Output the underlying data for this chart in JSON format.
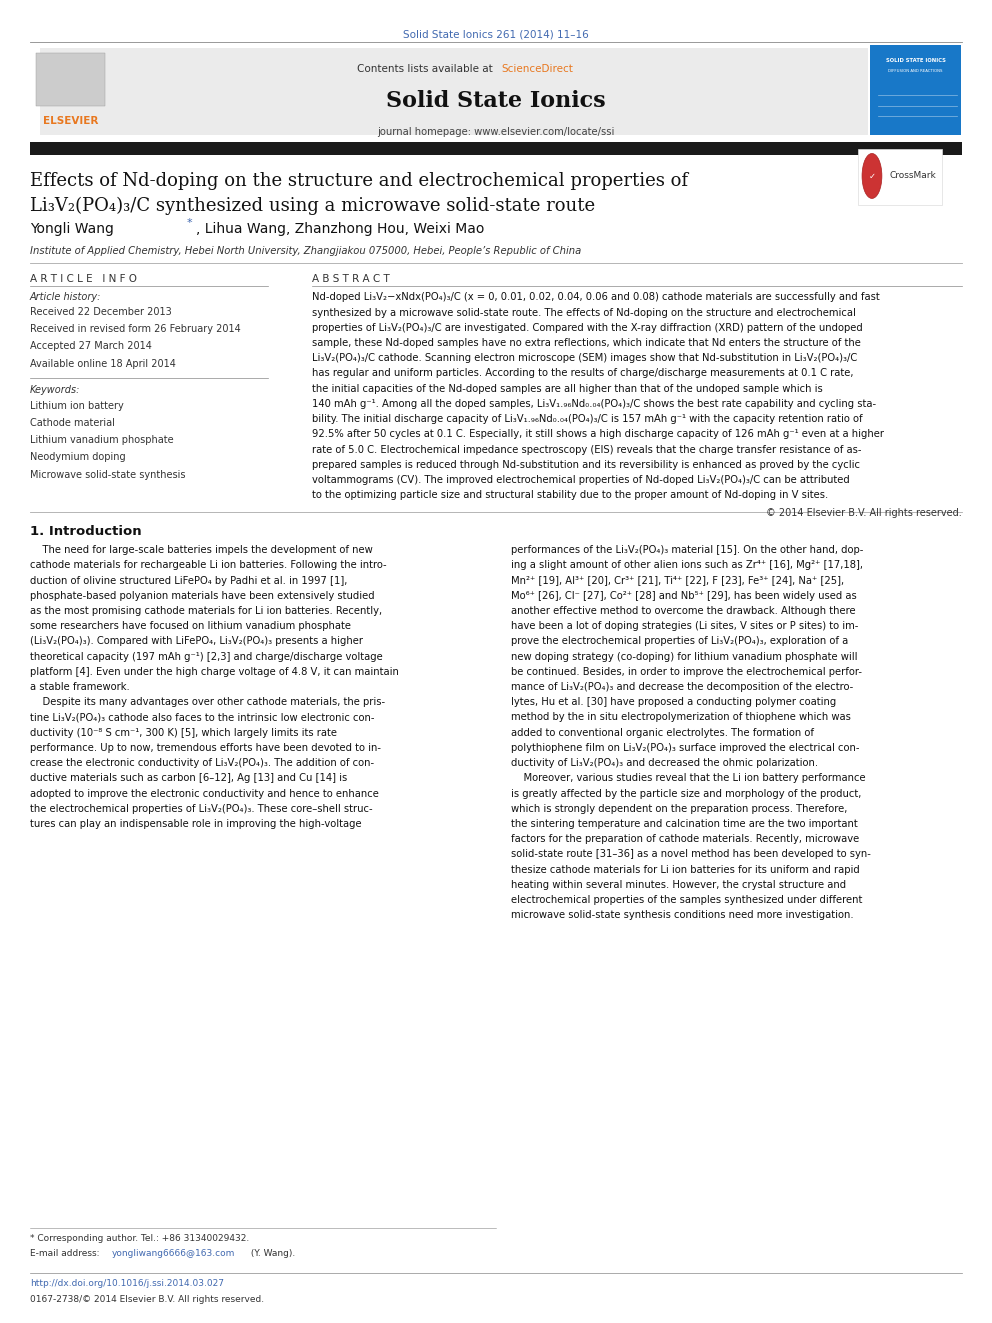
{
  "page_bg": "#ffffff",
  "journal_ref": "Solid State Ionics 261 (2014) 11–16",
  "journal_ref_color": "#4169b0",
  "thick_bar_color": "#1a1a1a",
  "title_line1": "Effects of Nd-doping on the structure and electrochemical properties of",
  "title_line2": "Li₃V₂(PO₄)₃/C synthesized using a microwave solid-state route",
  "authors_part1": "Yongli Wang ",
  "authors_asterisk": "*",
  "authors_part2": ", Lihua Wang, Zhanzhong Hou, Weixi Mao",
  "affiliation": "Institute of Applied Chemistry, Hebei North University, Zhangjiakou 075000, Hebei, People’s Republic of China",
  "article_info_header": "A R T I C L E   I N F O",
  "abstract_header": "A B S T R A C T",
  "article_history_label": "Article history:",
  "received": "Received 22 December 2013",
  "revised": "Received in revised form 26 February 2014",
  "accepted": "Accepted 27 March 2014",
  "available": "Available online 18 April 2014",
  "keywords_label": "Keywords:",
  "keywords": [
    "Lithium ion battery",
    "Cathode material",
    "Lithium vanadium phosphate",
    "Neodymium doping",
    "Microwave solid-state synthesis"
  ],
  "abstract_lines": [
    "Nd-doped Li₃V₂−xNdx(PO₄)₃/C (x = 0, 0.01, 0.02, 0.04, 0.06 and 0.08) cathode materials are successfully and fast",
    "synthesized by a microwave solid-state route. The effects of Nd-doping on the structure and electrochemical",
    "properties of Li₃V₂(PO₄)₃/C are investigated. Compared with the X-ray diffraction (XRD) pattern of the undoped",
    "sample, these Nd-doped samples have no extra reflections, which indicate that Nd enters the structure of the",
    "Li₃V₂(PO₄)₃/C cathode. Scanning electron microscope (SEM) images show that Nd-substitution in Li₃V₂(PO₄)₃/C",
    "has regular and uniform particles. According to the results of charge/discharge measurements at 0.1 C rate,",
    "the initial capacities of the Nd-doped samples are all higher than that of the undoped sample which is",
    "140 mAh g⁻¹. Among all the doped samples, Li₃V₁.₉₆Nd₀.₀₄(PO₄)₃/C shows the best rate capability and cycling sta-",
    "bility. The initial discharge capacity of Li₃V₁.₉₆Nd₀.₀₄(PO₄)₃/C is 157 mAh g⁻¹ with the capacity retention ratio of",
    "92.5% after 50 cycles at 0.1 C. Especially, it still shows a high discharge capacity of 126 mAh g⁻¹ even at a higher",
    "rate of 5.0 C. Electrochemical impedance spectroscopy (EIS) reveals that the charge transfer resistance of as-",
    "prepared samples is reduced through Nd-substitution and its reversibility is enhanced as proved by the cyclic",
    "voltammograms (CV). The improved electrochemical properties of Nd-doped Li₃V₂(PO₄)₃/C can be attributed",
    "to the optimizing particle size and structural stability due to the proper amount of Nd-doping in V sites."
  ],
  "copyright": "© 2014 Elsevier B.V. All rights reserved.",
  "intro_header": "1. Introduction",
  "intro_col1_lines": [
    "    The need for large-scale batteries impels the development of new",
    "cathode materials for rechargeable Li ion batteries. Following the intro-",
    "duction of olivine structured LiFePO₄ by Padhi et al. in 1997 [1],",
    "phosphate-based polyanion materials have been extensively studied",
    "as the most promising cathode materials for Li ion batteries. Recently,",
    "some researchers have focused on lithium vanadium phosphate",
    "(Li₃V₂(PO₄)₃). Compared with LiFePO₄, Li₃V₂(PO₄)₃ presents a higher",
    "theoretical capacity (197 mAh g⁻¹) [2,3] and charge/discharge voltage",
    "platform [4]. Even under the high charge voltage of 4.8 V, it can maintain",
    "a stable framework.",
    "    Despite its many advantages over other cathode materials, the pris-",
    "tine Li₃V₂(PO₄)₃ cathode also faces to the intrinsic low electronic con-",
    "ductivity (10⁻⁸ S cm⁻¹, 300 K) [5], which largely limits its rate",
    "performance. Up to now, tremendous efforts have been devoted to in-",
    "crease the electronic conductivity of Li₃V₂(PO₄)₃. The addition of con-",
    "ductive materials such as carbon [6–12], Ag [13] and Cu [14] is",
    "adopted to improve the electronic conductivity and hence to enhance",
    "the electrochemical properties of Li₃V₂(PO₄)₃. These core–shell struc-",
    "tures can play an indispensable role in improving the high-voltage"
  ],
  "intro_col2_lines": [
    "performances of the Li₃V₂(PO₄)₃ material [15]. On the other hand, dop-",
    "ing a slight amount of other alien ions such as Zr⁴⁺ [16], Mg²⁺ [17,18],",
    "Mn²⁺ [19], Al³⁺ [20], Cr³⁺ [21], Ti⁴⁺ [22], F [23], Fe³⁺ [24], Na⁺ [25],",
    "Mo⁶⁺ [26], Cl⁻ [27], Co²⁺ [28] and Nb⁵⁺ [29], has been widely used as",
    "another effective method to overcome the drawback. Although there",
    "have been a lot of doping strategies (Li sites, V sites or P sites) to im-",
    "prove the electrochemical properties of Li₃V₂(PO₄)₃, exploration of a",
    "new doping strategy (co-doping) for lithium vanadium phosphate will",
    "be continued. Besides, in order to improve the electrochemical perfor-",
    "mance of Li₃V₂(PO₄)₃ and decrease the decomposition of the electro-",
    "lytes, Hu et al. [30] have proposed a conducting polymer coating",
    "method by the in situ electropolymerization of thiophene which was",
    "added to conventional organic electrolytes. The formation of",
    "polythiophene film on Li₃V₂(PO₄)₃ surface improved the electrical con-",
    "ductivity of Li₃V₂(PO₄)₃ and decreased the ohmic polarization.",
    "    Moreover, various studies reveal that the Li ion battery performance",
    "is greatly affected by the particle size and morphology of the product,",
    "which is strongly dependent on the preparation process. Therefore,",
    "the sintering temperature and calcination time are the two important",
    "factors for the preparation of cathode materials. Recently, microwave",
    "solid-state route [31–36] as a novel method has been developed to syn-",
    "thesize cathode materials for Li ion batteries for its uniform and rapid",
    "heating within several minutes. However, the crystal structure and",
    "electrochemical properties of the samples synthesized under different",
    "microwave solid-state synthesis conditions need more investigation."
  ],
  "footnote_star": "* Corresponding author. Tel.: +86 31340029432.",
  "footnote_email_pre": "E-mail address: ",
  "footnote_email": "yongliwang6666@163.com",
  "footnote_email_post": " (Y. Wang).",
  "footer_doi": "http://dx.doi.org/10.1016/j.ssi.2014.03.027",
  "footer_issn": "0167-2738/© 2014 Elsevier B.V. All rights reserved.",
  "link_color": "#4169b0",
  "elsevier_color": "#e87820"
}
